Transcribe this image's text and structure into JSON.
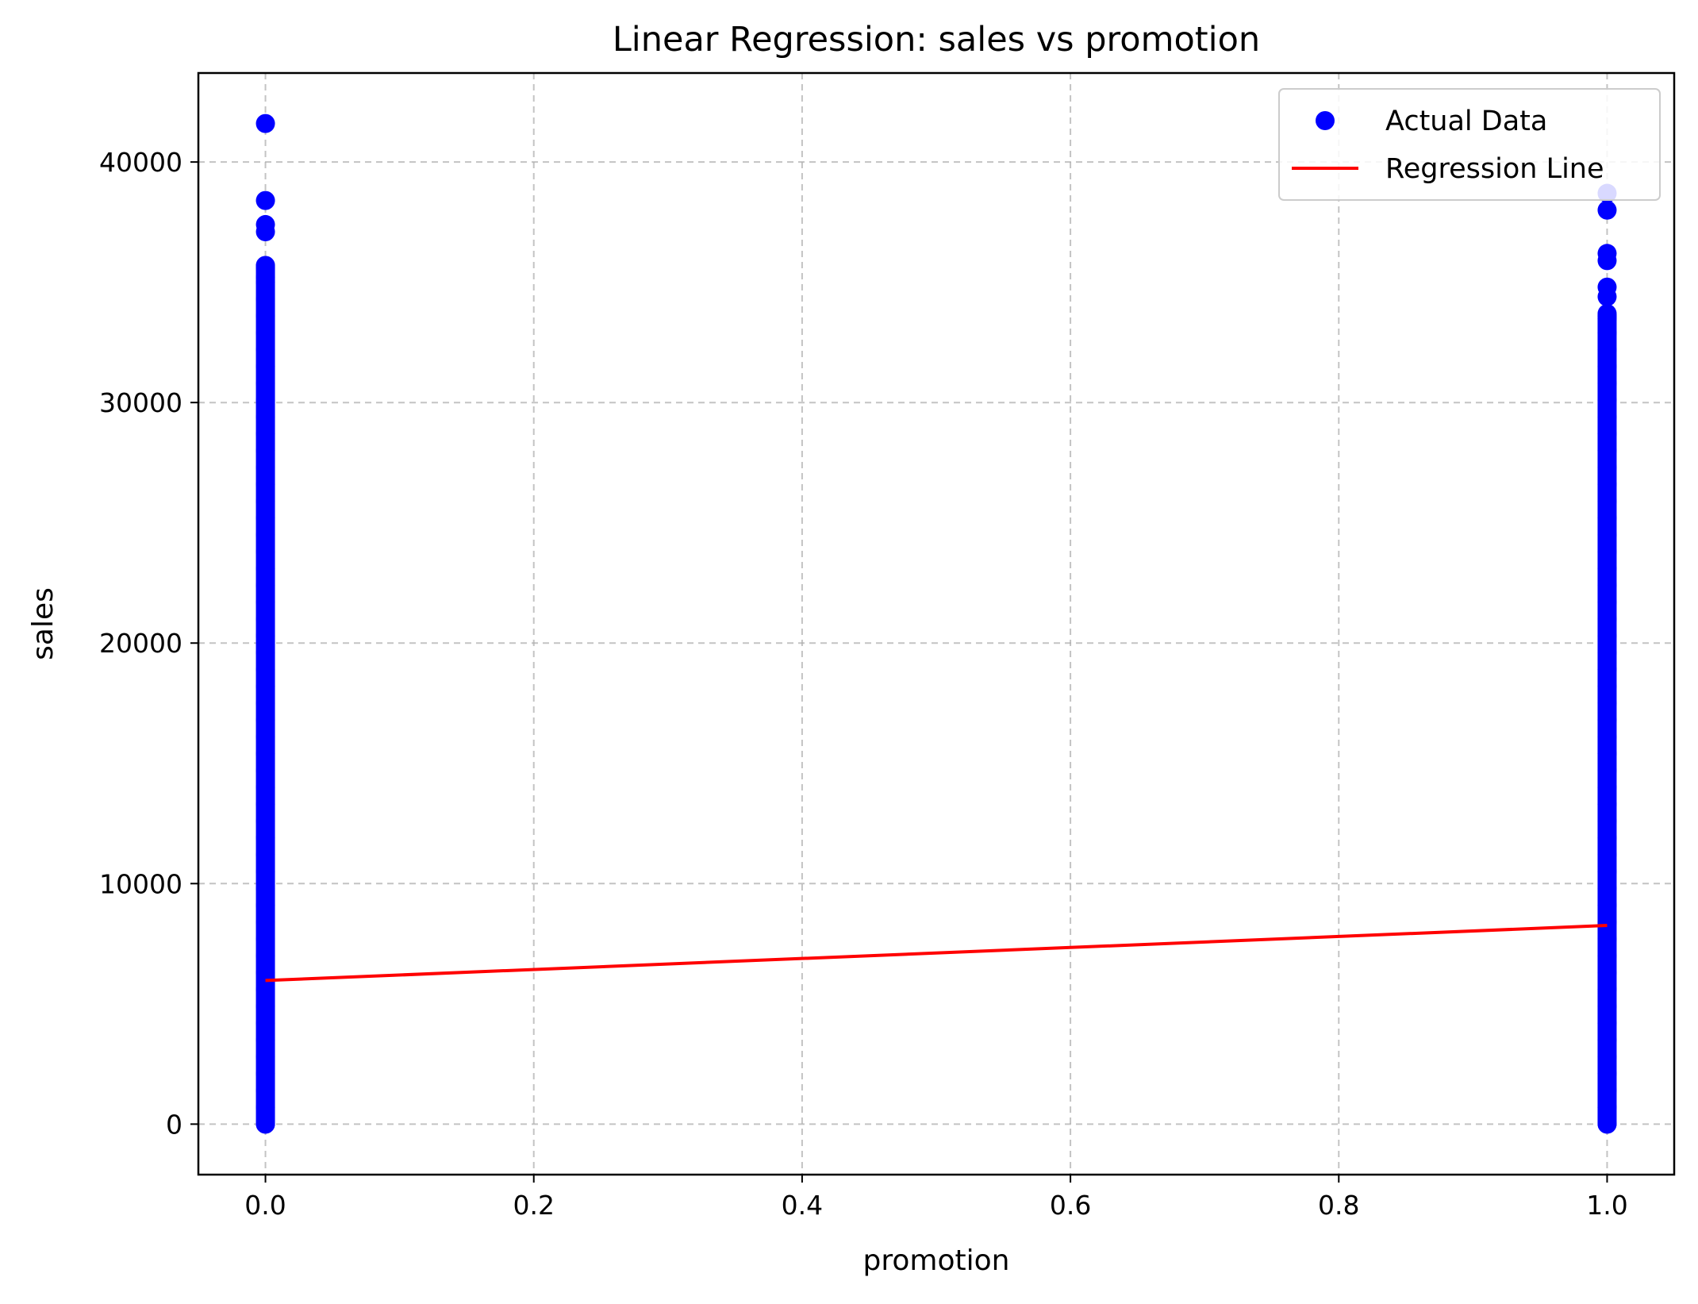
{
  "chart_data": {
    "type": "scatter",
    "title": "Linear Regression: sales vs promotion",
    "xlabel": "promotion",
    "ylabel": "sales",
    "xlim": [
      -0.05,
      1.05
    ],
    "ylim": [
      -2100,
      43700
    ],
    "xticks": [
      0.0,
      0.2,
      0.4,
      0.6,
      0.8,
      1.0
    ],
    "xtick_labels": [
      "0.0",
      "0.2",
      "0.4",
      "0.6",
      "0.8",
      "1.0"
    ],
    "yticks": [
      0,
      10000,
      20000,
      30000,
      40000
    ],
    "ytick_labels": [
      "0",
      "10000",
      "20000",
      "30000",
      "40000"
    ],
    "grid": true,
    "legend": {
      "position": "top-right",
      "entries": [
        {
          "label": "Actual Data",
          "marker": "circle",
          "color": "#0000ff"
        },
        {
          "label": "Regression Line",
          "marker": "line",
          "color": "#ff0000"
        }
      ]
    },
    "series": [
      {
        "name": "Actual Data",
        "kind": "scatter",
        "color": "#0000ff",
        "columns": [
          {
            "x": 0,
            "y_min": 0,
            "y_max": 35700
          },
          {
            "x": 1,
            "y_min": 0,
            "y_max": 33700
          }
        ],
        "points": [
          {
            "x": 0,
            "y": 41600
          },
          {
            "x": 0,
            "y": 38400
          },
          {
            "x": 0,
            "y": 37400
          },
          {
            "x": 0,
            "y": 37100
          },
          {
            "x": 0,
            "y": 35600
          },
          {
            "x": 0,
            "y": 35200
          },
          {
            "x": 1,
            "y": 38700
          },
          {
            "x": 1,
            "y": 38000
          },
          {
            "x": 1,
            "y": 36200
          },
          {
            "x": 1,
            "y": 35900
          },
          {
            "x": 1,
            "y": 34800
          },
          {
            "x": 1,
            "y": 34400
          },
          {
            "x": 1,
            "y": 33500
          }
        ]
      },
      {
        "name": "Regression Line",
        "kind": "line",
        "color": "#ff0000",
        "x": [
          0,
          1
        ],
        "y": [
          5970,
          8260
        ]
      }
    ]
  }
}
